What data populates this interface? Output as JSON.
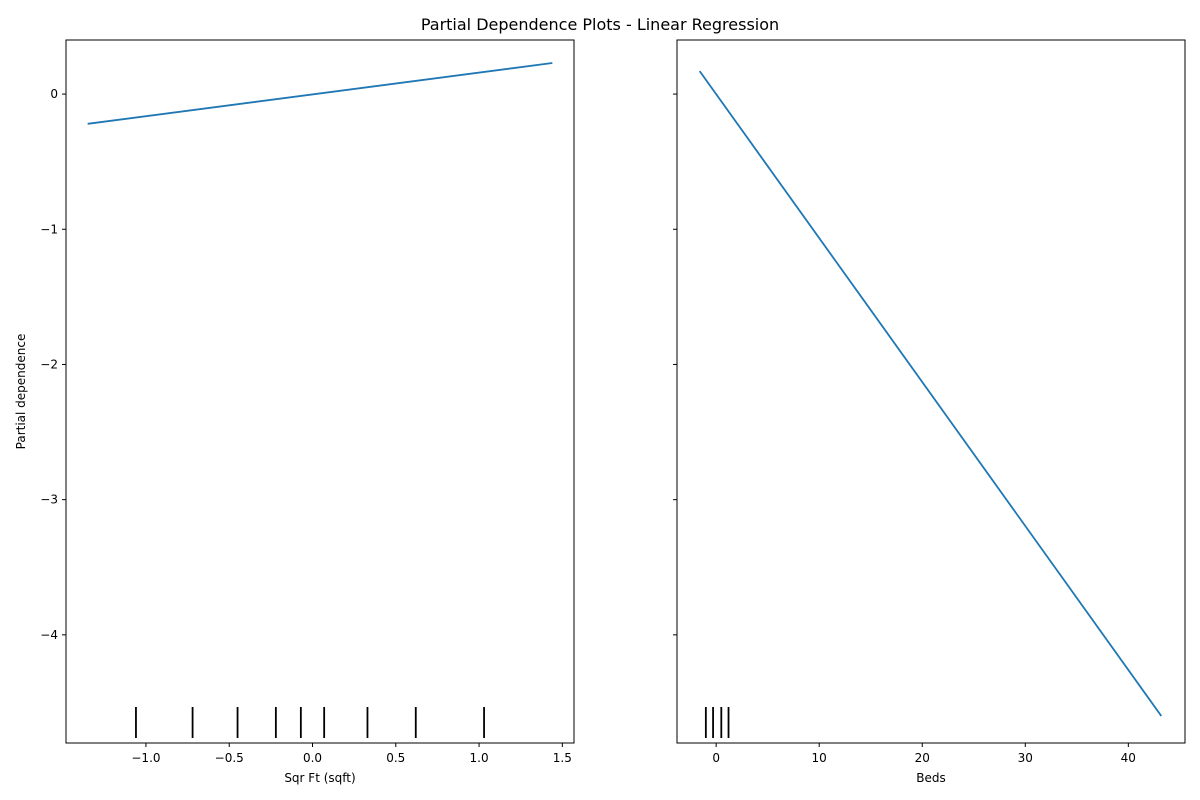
{
  "figure": {
    "title": "Partial Dependence Plots - Linear Regression"
  },
  "colors": {
    "line": "#1f77b4",
    "axes": "#000000",
    "rug": "#000000"
  },
  "chart_data": [
    {
      "type": "line",
      "xlabel": "Sqr Ft (sqft)",
      "ylabel": "Partial dependence",
      "xlim": [
        -1.48,
        1.57
      ],
      "ylim": [
        -4.8,
        0.4
      ],
      "xticks": [
        {
          "v": -1.0,
          "label": "−1.0"
        },
        {
          "v": -0.5,
          "label": "−0.5"
        },
        {
          "v": 0.0,
          "label": "0.0"
        },
        {
          "v": 0.5,
          "label": "0.5"
        },
        {
          "v": 1.0,
          "label": "1.0"
        },
        {
          "v": 1.5,
          "label": "1.5"
        }
      ],
      "yticks": [
        {
          "v": 0,
          "label": "0"
        },
        {
          "v": -1,
          "label": "−1"
        },
        {
          "v": -2,
          "label": "−2"
        },
        {
          "v": -3,
          "label": "−3"
        },
        {
          "v": -4,
          "label": "−4"
        }
      ],
      "series": [
        {
          "x": [
            -1.35,
            1.44
          ],
          "y": [
            -0.22,
            0.23
          ]
        }
      ],
      "deciles": [
        -1.06,
        -0.72,
        -0.45,
        -0.22,
        -0.07,
        0.07,
        0.33,
        0.62,
        1.03
      ]
    },
    {
      "type": "line",
      "xlabel": "Beds",
      "ylabel": "",
      "xlim": [
        -3.8,
        45.5
      ],
      "ylim": [
        -4.8,
        0.4
      ],
      "xticks": [
        {
          "v": 0,
          "label": "0"
        },
        {
          "v": 10,
          "label": "10"
        },
        {
          "v": 20,
          "label": "20"
        },
        {
          "v": 30,
          "label": "30"
        },
        {
          "v": 40,
          "label": "40"
        }
      ],
      "yticks": [
        {
          "v": 0,
          "label": ""
        },
        {
          "v": -1,
          "label": ""
        },
        {
          "v": -2,
          "label": ""
        },
        {
          "v": -3,
          "label": ""
        },
        {
          "v": -4,
          "label": ""
        }
      ],
      "series": [
        {
          "x": [
            -1.6,
            43.2
          ],
          "y": [
            0.17,
            -4.6
          ]
        }
      ],
      "deciles": [
        -1.0,
        -0.3,
        0.5,
        1.2
      ]
    }
  ]
}
